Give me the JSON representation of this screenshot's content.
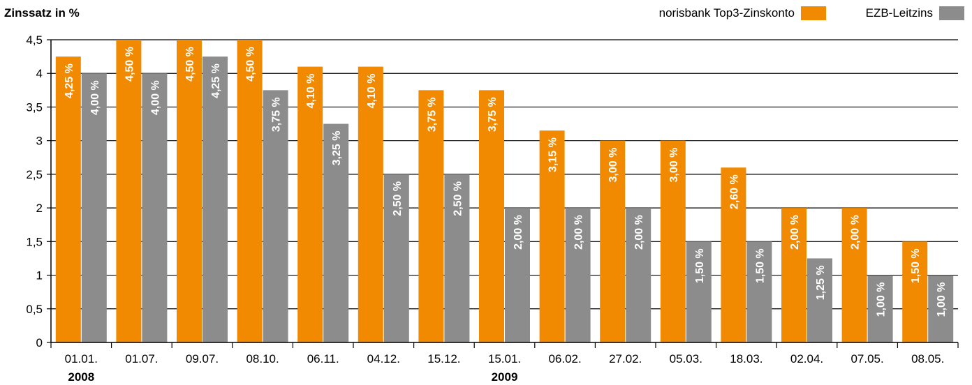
{
  "chart_data": {
    "type": "bar",
    "ylabel": "Zinssatz in %",
    "ylim": [
      0,
      4.5
    ],
    "yticks": [
      "0",
      "0,5",
      "1",
      "1,5",
      "2",
      "2,5",
      "3",
      "3,5",
      "4",
      "4,5"
    ],
    "ytick_values": [
      0,
      0.5,
      1,
      1.5,
      2,
      2.5,
      3,
      3.5,
      4,
      4.5
    ],
    "grid": true,
    "legend_position": "top-right",
    "categories": [
      "01.01.",
      "01.07.",
      "09.07.",
      "08.10.",
      "06.11.",
      "04.12.",
      "15.12.",
      "15.01.",
      "06.02.",
      "27.02.",
      "05.03.",
      "18.03.",
      "02.04.",
      "07.05.",
      "08.05."
    ],
    "year_labels": [
      {
        "category_index": 0,
        "label": "2008"
      },
      {
        "category_index": 7,
        "label": "2009"
      }
    ],
    "series": [
      {
        "name": "norisbank Top3-Zinskonto",
        "color": "#f18a00",
        "values": [
          4.25,
          4.5,
          4.5,
          4.5,
          4.1,
          4.1,
          3.75,
          3.75,
          3.15,
          3.0,
          3.0,
          2.6,
          2.0,
          2.0,
          1.5
        ],
        "labels": [
          "4,25 %",
          "4,50 %",
          "4,50 %",
          "4,50 %",
          "4,10 %",
          "4,10 %",
          "3,75 %",
          "3,75 %",
          "3,15 %",
          "3,00 %",
          "3,00 %",
          "2,60 %",
          "2,00 %",
          "2,00 %",
          "1,50 %"
        ]
      },
      {
        "name": "EZB-Leitzins",
        "color": "#8c8c8c",
        "values": [
          4.0,
          4.0,
          4.25,
          3.75,
          3.25,
          2.5,
          2.5,
          2.0,
          2.0,
          2.0,
          1.5,
          1.5,
          1.25,
          1.0,
          1.0
        ],
        "labels": [
          "4,00 %",
          "4,00 %",
          "4,25 %",
          "3,75 %",
          "3,25 %",
          "2,50 %",
          "2,50 %",
          "2,00 %",
          "2,00 %",
          "2,00 %",
          "1,50 %",
          "1,50 %",
          "1,25 %",
          "1,00 %",
          "1,00 %"
        ]
      }
    ]
  }
}
